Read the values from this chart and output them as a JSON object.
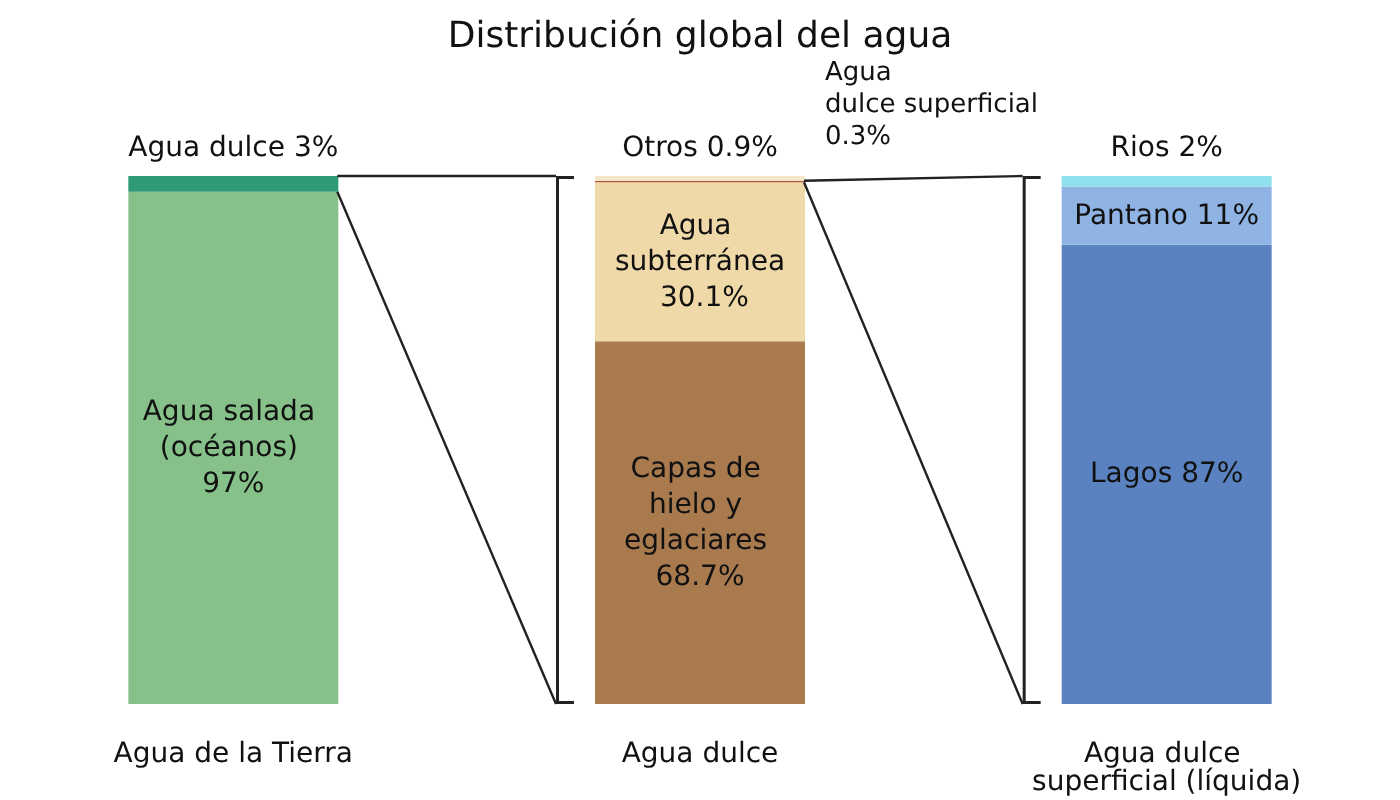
{
  "chart_data": {
    "type": "bar",
    "title": "Distribución global del agua",
    "stacked": true,
    "legend": false,
    "categories": [
      "Agua de la Tierra",
      "Agua dulce",
      "Agua dulce superficial (líquida)"
    ],
    "series": [
      {
        "name": "Agua salada (océanos)",
        "color": "#86c18a",
        "values": [
          97,
          null,
          null
        ],
        "value_labels": [
          "97%",
          null,
          null
        ]
      },
      {
        "name": "Agua dulce",
        "color": "#2e9a76",
        "values": [
          3,
          null,
          null
        ],
        "value_labels": [
          "3%",
          null,
          null
        ]
      },
      {
        "name": "Capas de hielo y eglaciares",
        "color": "#a87a4e",
        "values": [
          null,
          68.7,
          null
        ],
        "value_labels": [
          null,
          "68.7%",
          null
        ]
      },
      {
        "name": "Agua subterránea",
        "color": "#f0d9a8",
        "values": [
          null,
          30.1,
          null
        ],
        "value_labels": [
          null,
          "30.1%",
          null
        ]
      },
      {
        "name": "Agua dulce superficial",
        "color": "#b5583a",
        "values": [
          null,
          0.3,
          null
        ],
        "value_labels": [
          null,
          "0.3%",
          null
        ]
      },
      {
        "name": "Otros",
        "color": "#f5e8c8",
        "values": [
          null,
          0.9,
          null
        ],
        "value_labels": [
          null,
          "0.9%",
          null
        ]
      },
      {
        "name": "Lagos",
        "color": "#5b82c0",
        "values": [
          null,
          null,
          87
        ],
        "value_labels": [
          null,
          null,
          "87%"
        ]
      },
      {
        "name": "Pantano",
        "color": "#8fb4e3",
        "values": [
          null,
          null,
          11
        ],
        "value_labels": [
          null,
          null,
          "11%"
        ]
      },
      {
        "name": "Rios",
        "color": "#8ee0ee",
        "values": [
          null,
          null,
          2
        ],
        "value_labels": [
          null,
          null,
          "2%"
        ]
      }
    ]
  }
}
